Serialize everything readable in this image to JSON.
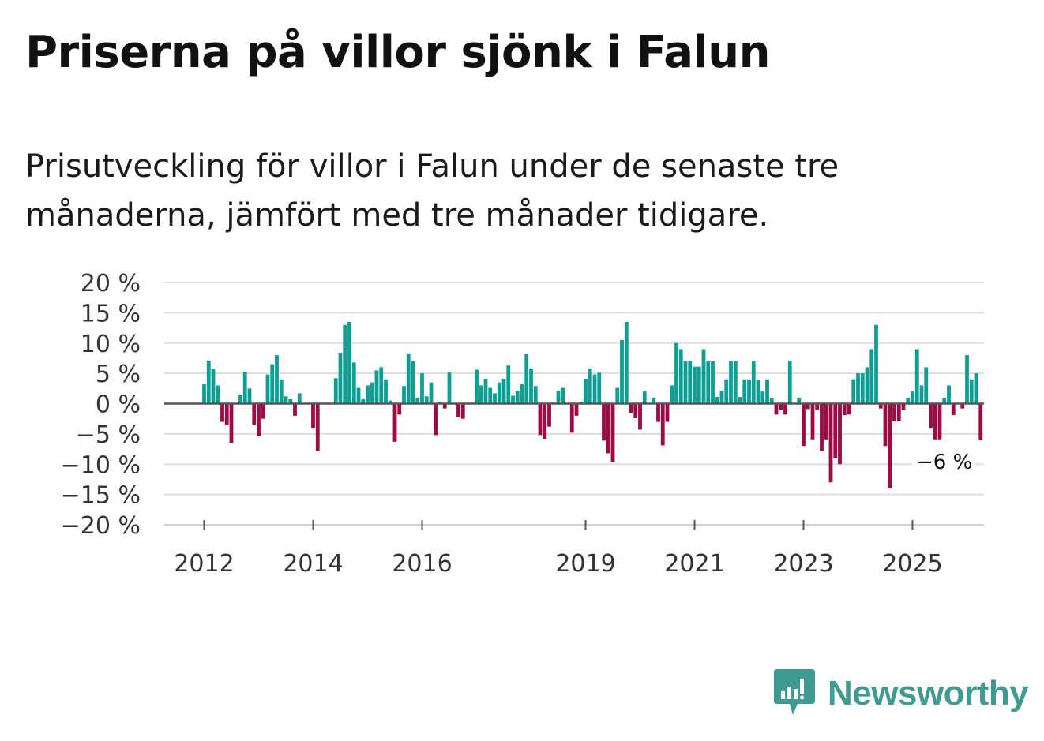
{
  "title": "Priserna på villor sjönk i Falun",
  "subtitle": "Prisutveckling för villor i Falun under de senaste tre månaderna, jämfört med tre månader tidigare.",
  "brand": {
    "name": "Newsworthy",
    "color": "#3f9a92",
    "icon": "newsworthy-logo-icon"
  },
  "colors": {
    "positive": "#0f9e94",
    "negative": "#9e0a44",
    "grid": "#dddddd",
    "zero": "#555555"
  },
  "chart_data": {
    "type": "bar",
    "title": "Priserna på villor sjönk i Falun",
    "xlabel": "",
    "ylabel": "",
    "ylim": [
      -20,
      20
    ],
    "yticks": [
      20,
      15,
      10,
      5,
      0,
      -5,
      -10,
      -15,
      -20
    ],
    "ytick_labels": [
      "20 %",
      "15 %",
      "10 %",
      "5 %",
      "0 %",
      "−5 %",
      "−10 %",
      "−15 %",
      "−20 %"
    ],
    "xticks": [
      "2012",
      "2014",
      "2016",
      "2019",
      "2021",
      "2023",
      "2025"
    ],
    "start": "2012-01",
    "frequency": "monthly",
    "annotation": {
      "label": "−6 %",
      "value": -6
    },
    "values": [
      3.2,
      7.1,
      5.7,
      3.0,
      -3.0,
      -3.5,
      -6.5,
      0,
      1.5,
      5.2,
      2.5,
      -3.5,
      -5.3,
      -2.5,
      4.8,
      6.5,
      8.0,
      4.0,
      1.2,
      0.8,
      -2.0,
      1.7,
      0,
      0,
      -4.0,
      -7.8,
      0,
      0,
      0,
      4.2,
      8.4,
      13.0,
      13.5,
      6.8,
      2.6,
      0.8,
      3.0,
      3.5,
      5.5,
      6.0,
      4.0,
      0.5,
      -6.3,
      -1.8,
      2.9,
      8.3,
      7.0,
      1.0,
      5.0,
      1.2,
      3.5,
      -5.2,
      0.3,
      -0.8,
      5.1,
      0.1,
      -2.2,
      -2.5,
      0,
      0,
      5.6,
      3.0,
      4.1,
      2.6,
      1.7,
      3.5,
      4.1,
      6.3,
      1.3,
      2.1,
      3.2,
      8.2,
      5.8,
      2.9,
      -5.2,
      -5.8,
      -3.8,
      0.2,
      2.1,
      2.6,
      0,
      -4.8,
      -2.0,
      0.3,
      4.1,
      5.8,
      4.8,
      5.1,
      -6.1,
      -8.2,
      -9.6,
      2.6,
      10.5,
      13.5,
      -1.5,
      -2.4,
      -4.3,
      2.0,
      0,
      1.0,
      -3.0,
      -6.9,
      -3.0,
      3.0,
      10.0,
      9.0,
      7.0,
      7.0,
      6.1,
      6.1,
      9.0,
      7.0,
      7.0,
      1.1,
      2.1,
      4.0,
      7.0,
      7.0,
      1.1,
      4.0,
      4.0,
      7.0,
      3.9,
      2.0,
      4.0,
      1.0,
      -1.8,
      -1.0,
      -1.8,
      7.0,
      0,
      1.0,
      -7.0,
      -0.9,
      -5.9,
      -1.0,
      -7.8,
      -5.9,
      -13.0,
      -9.0,
      -10.0,
      -1.9,
      -1.8,
      4.0,
      5.0,
      5.0,
      6.0,
      9.0,
      13.0,
      -0.8,
      -7.0,
      -14.0,
      -2.9,
      -2.9,
      -1.0,
      1.0,
      2.0,
      9.0,
      3.0,
      6.0,
      -4.0,
      -5.9,
      -5.9,
      1.0,
      3.0,
      -1.9,
      0,
      -0.8,
      8.0,
      4.0,
      5.0,
      -6.0
    ]
  }
}
